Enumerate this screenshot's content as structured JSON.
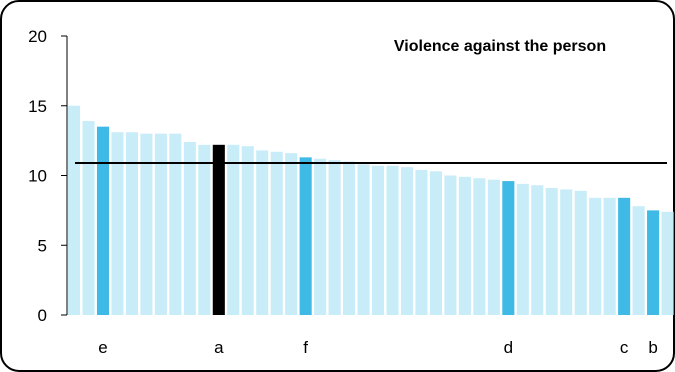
{
  "chart_data": {
    "type": "bar",
    "title": "Violence against the person",
    "xlabel": "",
    "ylabel": "",
    "ylim": [
      0,
      20
    ],
    "yticks": [
      "0",
      "5",
      "10",
      "15",
      "20"
    ],
    "reference_line": 10.9,
    "grid": false,
    "legend": "none",
    "colors": {
      "default_bar": "#c8ecf8",
      "highlight_bar": "#3fb9e6",
      "selected_bar": "#000000",
      "reference_line": "#000000"
    },
    "values": [
      15.0,
      13.9,
      13.5,
      13.1,
      13.1,
      13.0,
      13.0,
      13.0,
      12.4,
      12.2,
      12.2,
      12.2,
      12.1,
      11.8,
      11.7,
      11.6,
      11.3,
      11.2,
      11.1,
      11.0,
      10.8,
      10.7,
      10.7,
      10.6,
      10.4,
      10.3,
      10.0,
      9.9,
      9.8,
      9.7,
      9.6,
      9.4,
      9.3,
      9.1,
      9.0,
      8.9,
      8.4,
      8.4,
      8.4,
      7.8,
      7.5,
      7.4
    ],
    "highlight_indices": [
      2,
      16,
      30,
      38,
      40
    ],
    "selected_index": 10,
    "bar_labels": [
      {
        "index": 2,
        "text": "e"
      },
      {
        "index": 10,
        "text": "a"
      },
      {
        "index": 16,
        "text": "f"
      },
      {
        "index": 30,
        "text": "d"
      },
      {
        "index": 38,
        "text": "c"
      },
      {
        "index": 40,
        "text": "b"
      }
    ]
  }
}
